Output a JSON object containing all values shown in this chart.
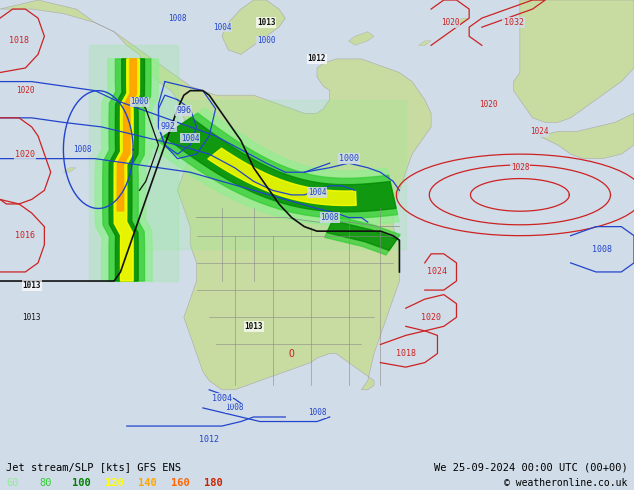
{
  "title_left": "Jet stream/SLP [kts] GFS ENS",
  "title_right": "We 25-09-2024 00:00 UTC (00+00)",
  "copyright": "© weatheronline.co.uk",
  "legend_values": [
    60,
    80,
    100,
    120,
    140,
    160,
    180
  ],
  "legend_colors": [
    "#90ee90",
    "#32cd32",
    "#008000",
    "#ffff00",
    "#ffa500",
    "#ff6600",
    "#cc2200"
  ],
  "ocean_color": "#d0dce8",
  "land_color": "#c8dba0",
  "land_color2": "#b8cc90",
  "border_color": "#888888",
  "contour_blue": "#2244cc",
  "contour_red": "#cc2222",
  "contour_black": "#111111",
  "fig_width": 6.34,
  "fig_height": 4.9,
  "dpi": 100,
  "bar_height": 0.075
}
